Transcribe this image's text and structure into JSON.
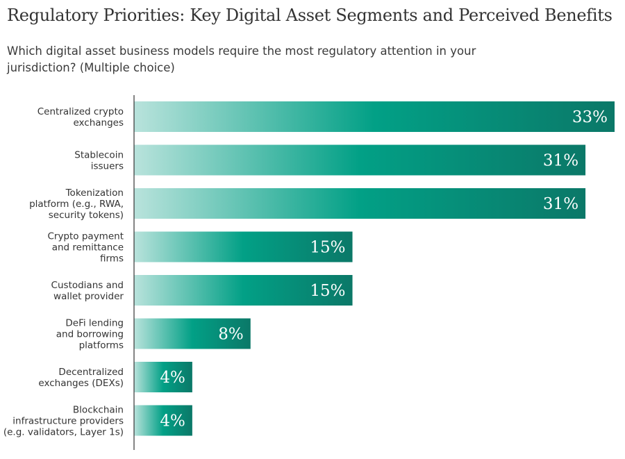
{
  "chart_data": {
    "type": "bar",
    "orientation": "horizontal",
    "title": "Regulatory Priorities: Key Digital Asset Segments and Perceived Benefits",
    "subtitle": "Which digital asset business models require the most regulatory attention in your jurisdiction? (Multiple choice)",
    "categories": [
      [
        "Centralized crypto",
        "exchanges"
      ],
      [
        "Stablecoin",
        "issuers"
      ],
      [
        "Tokenization",
        "platform (e.g., RWA,",
        "security tokens)"
      ],
      [
        "Crypto payment",
        "and remittance",
        "firms"
      ],
      [
        "Custodians and",
        "wallet provider"
      ],
      [
        "DeFi lending",
        "and borrowing",
        "platforms"
      ],
      [
        "Decentralized",
        "exchanges (DEXs)"
      ],
      [
        "Blockchain",
        "infrastructure providers",
        "(e.g. validators, Layer 1s)"
      ]
    ],
    "values": [
      33,
      31,
      31,
      15,
      15,
      8,
      4,
      4
    ],
    "value_labels": [
      "33%",
      "31%",
      "31%",
      "15%",
      "15%",
      "8%",
      "4%",
      "4%"
    ],
    "xlim": [
      0,
      33
    ],
    "grid": false,
    "colors": {
      "bar_start": "#b9e3dc",
      "bar_mid": "#02a086",
      "bar_end": "#0b7868",
      "axis": "#333333"
    }
  }
}
